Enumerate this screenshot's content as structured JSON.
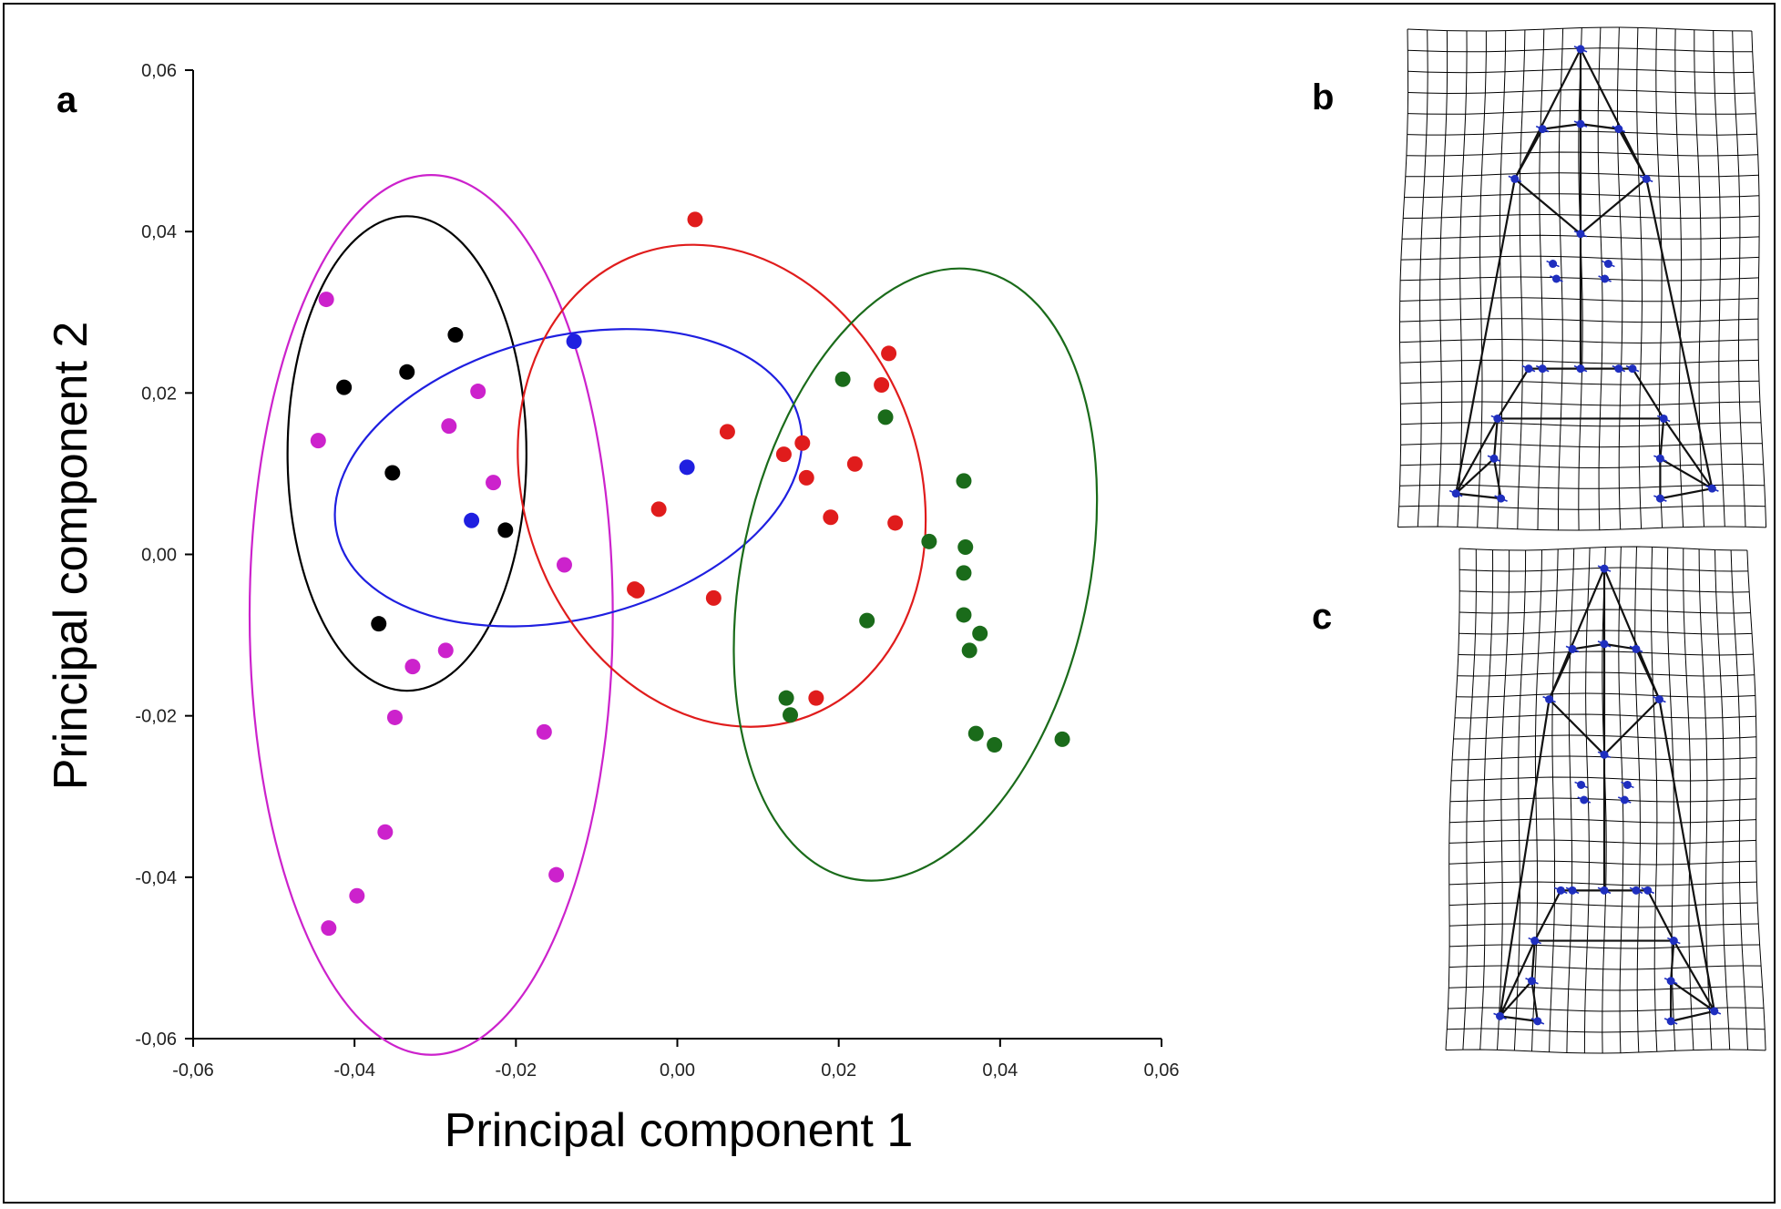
{
  "panels": {
    "a": "a",
    "b": "b",
    "c": "c"
  },
  "chart_data": {
    "type": "scatter",
    "xlabel": "Principal component 1",
    "ylabel": "Principal component 2",
    "xlim": [
      -0.06,
      0.06
    ],
    "ylim": [
      -0.06,
      0.06
    ],
    "xticks": [
      -0.06,
      -0.04,
      -0.02,
      0.0,
      0.02,
      0.04,
      0.06
    ],
    "yticks": [
      -0.06,
      -0.04,
      -0.02,
      0.0,
      0.02,
      0.04,
      0.06
    ],
    "xtick_labels": [
      "-0,06",
      "-0,04",
      "-0,02",
      "0,00",
      "0,02",
      "0,04",
      "0,06"
    ],
    "ytick_labels": [
      "-0,06",
      "-0,04",
      "-0,02",
      "0,00",
      "0,02",
      "0,04",
      "0,06"
    ],
    "grid": false,
    "series": [
      {
        "color": "#000000",
        "points": [
          [
            -0.0413,
            0.0207
          ],
          [
            -0.0335,
            0.0226
          ],
          [
            -0.0275,
            0.0272
          ],
          [
            -0.0353,
            0.0101
          ],
          [
            -0.0213,
            0.003
          ],
          [
            -0.037,
            -0.0086
          ]
        ],
        "ellipse": {
          "cx": -0.0335,
          "cy": 0.0125,
          "rx": 0.0148,
          "ry": 0.0294,
          "angle_deg": 0
        }
      },
      {
        "color": "#cc22cc",
        "points": [
          [
            -0.0435,
            0.0316
          ],
          [
            -0.0445,
            0.0141
          ],
          [
            -0.0283,
            0.0159
          ],
          [
            -0.0247,
            0.0202
          ],
          [
            -0.0228,
            0.0089
          ],
          [
            -0.014,
            -0.0013
          ],
          [
            -0.0328,
            -0.0139
          ],
          [
            -0.0287,
            -0.0119
          ],
          [
            -0.035,
            -0.0202
          ],
          [
            -0.0165,
            -0.022
          ],
          [
            -0.0362,
            -0.0344
          ],
          [
            -0.0397,
            -0.0423
          ],
          [
            -0.015,
            -0.0397
          ],
          [
            -0.0432,
            -0.0463
          ]
        ],
        "ellipse": {
          "cx": -0.0305,
          "cy": -0.0075,
          "rx": 0.0225,
          "ry": 0.0545,
          "angle_deg": 0
        }
      },
      {
        "color": "#1f1fe0",
        "points": [
          [
            -0.0128,
            0.0264
          ],
          [
            0.0012,
            0.0108
          ],
          [
            -0.0255,
            0.0042
          ]
        ],
        "ellipse": {
          "cx": -0.0135,
          "cy": 0.0095,
          "rx": 0.0295,
          "ry": 0.0175,
          "angle_deg": 14
        }
      },
      {
        "color": "#e01c1c",
        "points": [
          [
            0.0022,
            0.0415
          ],
          [
            0.0262,
            0.0249
          ],
          [
            0.0253,
            0.021
          ],
          [
            0.0062,
            0.0152
          ],
          [
            0.0155,
            0.0138
          ],
          [
            0.0132,
            0.0124
          ],
          [
            0.022,
            0.0112
          ],
          [
            0.016,
            0.0095
          ],
          [
            -0.0023,
            0.0056
          ],
          [
            0.019,
            0.0046
          ],
          [
            0.027,
            0.0039
          ],
          [
            -0.0053,
            -0.0043
          ],
          [
            -0.005,
            -0.0045
          ],
          [
            0.0045,
            -0.0054
          ],
          [
            0.0172,
            -0.0178
          ]
        ],
        "ellipse": {
          "cx": 0.0055,
          "cy": 0.0085,
          "rx": 0.0245,
          "ry": 0.0305,
          "angle_deg": 20
        }
      },
      {
        "color": "#1a6b1a",
        "points": [
          [
            0.0205,
            0.0217
          ],
          [
            0.0258,
            0.017
          ],
          [
            0.0355,
            0.0091
          ],
          [
            0.0312,
            0.0016
          ],
          [
            0.0357,
            0.0009
          ],
          [
            0.0355,
            -0.0023
          ],
          [
            0.0235,
            -0.0082
          ],
          [
            0.0355,
            -0.0075
          ],
          [
            0.0375,
            -0.0098
          ],
          [
            0.0362,
            -0.0119
          ],
          [
            0.0135,
            -0.0178
          ],
          [
            0.014,
            -0.0199
          ],
          [
            0.037,
            -0.0222
          ],
          [
            0.0393,
            -0.0236
          ],
          [
            0.0477,
            -0.0229
          ]
        ],
        "ellipse": {
          "cx": 0.0295,
          "cy": -0.0025,
          "rx": 0.0215,
          "ry": 0.0385,
          "angle_deg": -12
        }
      }
    ]
  },
  "shape_panels": {
    "grid_color": "#000000",
    "wireframe_color": "#111111",
    "landmark_color": "#1f2fbf"
  }
}
